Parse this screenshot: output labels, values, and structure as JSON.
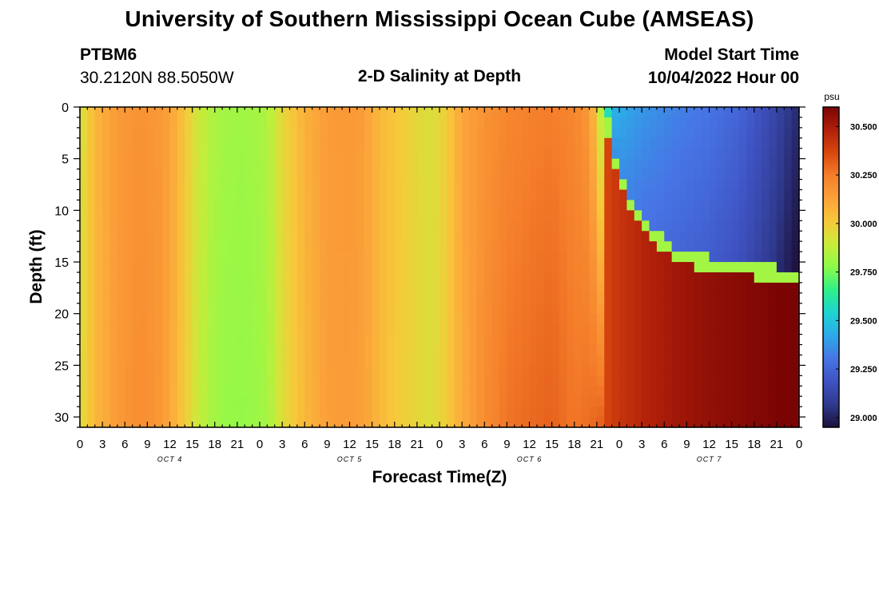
{
  "header": {
    "title": "University of Southern Mississippi Ocean Cube (AMSEAS)",
    "station_id": "PTBM6",
    "coords": "30.2120N  88.5050W",
    "subtitle": "2-D Salinity at Depth",
    "model_start_label": "Model Start Time",
    "model_start_value": "10/04/2022 Hour 00"
  },
  "footer": {
    "title": "University of Southern Mississippi Ocean Cube (AMSEAS)"
  },
  "chart_data": {
    "type": "heatmap",
    "title": "2-D Salinity at Depth",
    "xlabel": "Forecast Time(Z)",
    "ylabel": "Depth (ft)",
    "x_range_hours": [
      0,
      96
    ],
    "ylim": [
      0,
      31
    ],
    "y_inverted": true,
    "x_tick_labels": [
      "0",
      "3",
      "6",
      "9",
      "12",
      "15",
      "18",
      "21",
      "0",
      "3",
      "6",
      "9",
      "12",
      "15",
      "18",
      "21",
      "0",
      "3",
      "6",
      "9",
      "12",
      "15",
      "18",
      "21",
      "0",
      "3",
      "6",
      "9",
      "12",
      "15",
      "18",
      "21",
      "0"
    ],
    "y_ticks": [
      0,
      5,
      10,
      15,
      20,
      25,
      30
    ],
    "day_labels": [
      {
        "text": "OCT 4",
        "hour": 12
      },
      {
        "text": "OCT 5",
        "hour": 36
      },
      {
        "text": "OCT 6",
        "hour": 60
      },
      {
        "text": "OCT 7",
        "hour": 84
      }
    ],
    "colorbar": {
      "unit": "psu",
      "min": 28.95,
      "max": 30.6,
      "ticks": [
        "30.500",
        "30.250",
        "30.000",
        "29.750",
        "29.500",
        "29.250",
        "29.000"
      ],
      "palette": [
        "#1c0f3b",
        "#2f3a8e",
        "#3f52c2",
        "#4775e5",
        "#2da9e8",
        "#1ed3d3",
        "#2ef08a",
        "#8cfa4a",
        "#c9ec3a",
        "#f7c83a",
        "#fba23a",
        "#f57f2b",
        "#d9470f",
        "#b0200a",
        "#7a0403"
      ]
    },
    "surface_salinity_by_hour": [
      [
        0,
        29.92
      ],
      [
        2,
        30.06
      ],
      [
        5,
        30.16
      ],
      [
        8,
        30.18
      ],
      [
        11,
        30.16
      ],
      [
        13,
        30.08
      ],
      [
        15,
        29.95
      ],
      [
        17,
        29.86
      ],
      [
        19,
        29.82
      ],
      [
        22,
        29.81
      ],
      [
        25,
        29.84
      ],
      [
        27,
        29.96
      ],
      [
        30,
        30.08
      ],
      [
        33,
        30.15
      ],
      [
        36,
        30.16
      ],
      [
        38,
        30.14
      ],
      [
        40,
        30.06
      ],
      [
        42,
        30.02
      ],
      [
        44,
        29.98
      ],
      [
        47,
        29.93
      ],
      [
        49,
        30.0
      ],
      [
        51,
        30.12
      ],
      [
        54,
        30.18
      ],
      [
        57,
        30.22
      ],
      [
        60,
        30.24
      ],
      [
        63,
        30.25
      ],
      [
        66,
        30.22
      ],
      [
        68,
        30.16
      ],
      [
        69,
        30.0
      ],
      [
        70,
        29.75
      ],
      [
        71,
        29.45
      ],
      [
        75,
        29.38
      ],
      [
        80,
        29.33
      ],
      [
        84,
        29.3
      ],
      [
        88,
        29.25
      ],
      [
        92,
        29.15
      ],
      [
        96,
        29.02
      ]
    ],
    "bottom_salinity_by_hour": [
      [
        0,
        29.94
      ],
      [
        2,
        30.06
      ],
      [
        5,
        30.15
      ],
      [
        8,
        30.2
      ],
      [
        11,
        30.16
      ],
      [
        13,
        30.06
      ],
      [
        15,
        29.94
      ],
      [
        17,
        29.84
      ],
      [
        19,
        29.8
      ],
      [
        22,
        29.79
      ],
      [
        25,
        29.82
      ],
      [
        27,
        29.94
      ],
      [
        30,
        30.06
      ],
      [
        33,
        30.14
      ],
      [
        36,
        30.15
      ],
      [
        38,
        30.13
      ],
      [
        40,
        30.06
      ],
      [
        42,
        30.01
      ],
      [
        44,
        29.98
      ],
      [
        47,
        29.94
      ],
      [
        49,
        30.0
      ],
      [
        51,
        30.1
      ],
      [
        54,
        30.2
      ],
      [
        57,
        30.27
      ],
      [
        60,
        30.29
      ],
      [
        63,
        30.31
      ],
      [
        66,
        30.26
      ],
      [
        69,
        30.3
      ],
      [
        72,
        30.38
      ],
      [
        76,
        30.44
      ],
      [
        80,
        30.48
      ],
      [
        84,
        30.51
      ],
      [
        88,
        30.53
      ],
      [
        92,
        30.55
      ],
      [
        96,
        30.58
      ]
    ],
    "fresh_layer": {
      "start_hour": 70,
      "interface_depth_ft_at_hours": [
        [
          70,
          0
        ],
        [
          71,
          4
        ],
        [
          73,
          9
        ],
        [
          76,
          12
        ],
        [
          80,
          14.5
        ],
        [
          86,
          15.5
        ],
        [
          92,
          16
        ],
        [
          96,
          16.5
        ]
      ],
      "layer_salinity_range": [
        29.02,
        29.45
      ]
    }
  }
}
